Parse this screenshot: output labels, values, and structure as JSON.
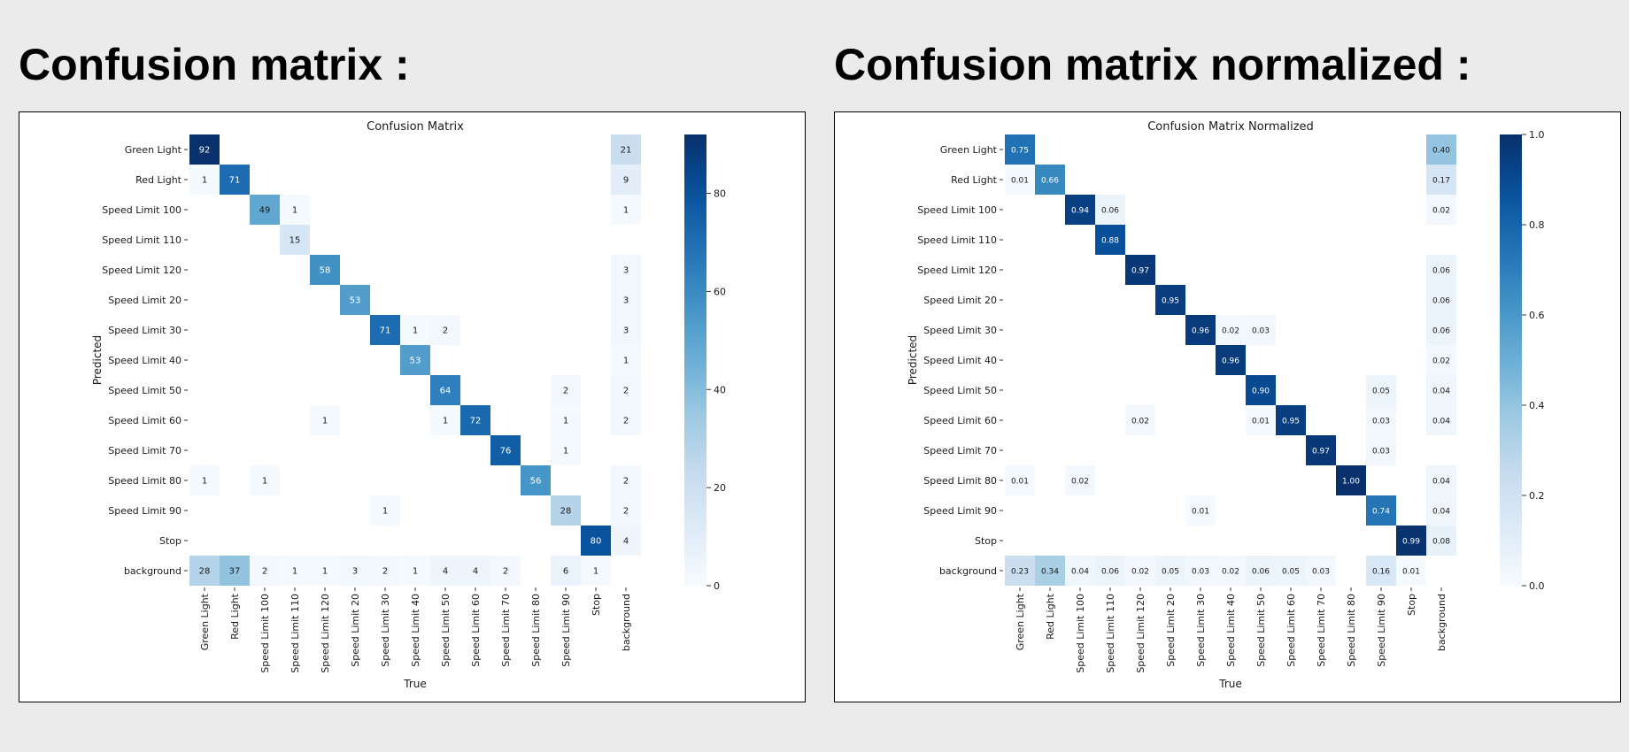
{
  "panels": [
    {
      "heading": "Confusion matrix :"
    },
    {
      "heading": "Confusion matrix normalized :"
    }
  ],
  "chart_data": [
    {
      "type": "heatmap",
      "title": "Confusion Matrix",
      "xlabel": "True",
      "ylabel": "Predicted",
      "colormap": "Blues",
      "color_range": [
        0,
        92
      ],
      "colorbar_ticks": [
        0,
        20,
        40,
        60,
        80
      ],
      "value_format": "int",
      "x_categories": [
        "Green Light",
        "Red Light",
        "Speed Limit 100",
        "Speed Limit 110",
        "Speed Limit 120",
        "Speed Limit 20",
        "Speed Limit 30",
        "Speed Limit 40",
        "Speed Limit 50",
        "Speed Limit 60",
        "Speed Limit 70",
        "Speed Limit 80",
        "Speed Limit 90",
        "Stop",
        "background"
      ],
      "y_categories": [
        "Green Light",
        "Red Light",
        "Speed Limit 100",
        "Speed Limit 110",
        "Speed Limit 120",
        "Speed Limit 20",
        "Speed Limit 30",
        "Speed Limit 40",
        "Speed Limit 50",
        "Speed Limit 60",
        "Speed Limit 70",
        "Speed Limit 80",
        "Speed Limit 90",
        "Stop",
        "background"
      ],
      "values": [
        [
          92,
          null,
          null,
          null,
          null,
          null,
          null,
          null,
          null,
          null,
          null,
          null,
          null,
          null,
          21
        ],
        [
          1,
          71,
          null,
          null,
          null,
          null,
          null,
          null,
          null,
          null,
          null,
          null,
          null,
          null,
          9
        ],
        [
          null,
          null,
          49,
          1,
          null,
          null,
          null,
          null,
          null,
          null,
          null,
          null,
          null,
          null,
          1
        ],
        [
          null,
          null,
          null,
          15,
          null,
          null,
          null,
          null,
          null,
          null,
          null,
          null,
          null,
          null,
          null
        ],
        [
          null,
          null,
          null,
          null,
          58,
          null,
          null,
          null,
          null,
          null,
          null,
          null,
          null,
          null,
          3
        ],
        [
          null,
          null,
          null,
          null,
          null,
          53,
          null,
          null,
          null,
          null,
          null,
          null,
          null,
          null,
          3
        ],
        [
          null,
          null,
          null,
          null,
          null,
          null,
          71,
          1,
          2,
          null,
          null,
          null,
          null,
          null,
          3
        ],
        [
          null,
          null,
          null,
          null,
          null,
          null,
          null,
          53,
          null,
          null,
          null,
          null,
          null,
          null,
          1
        ],
        [
          null,
          null,
          null,
          null,
          null,
          null,
          null,
          null,
          64,
          null,
          null,
          null,
          2,
          null,
          2
        ],
        [
          null,
          null,
          null,
          null,
          1,
          null,
          null,
          null,
          1,
          72,
          null,
          null,
          1,
          null,
          2
        ],
        [
          null,
          null,
          null,
          null,
          null,
          null,
          null,
          null,
          null,
          null,
          76,
          null,
          1,
          null,
          null
        ],
        [
          1,
          null,
          1,
          null,
          null,
          null,
          null,
          null,
          null,
          null,
          null,
          56,
          null,
          null,
          2
        ],
        [
          null,
          null,
          null,
          null,
          null,
          null,
          1,
          null,
          null,
          null,
          null,
          null,
          28,
          null,
          2
        ],
        [
          null,
          null,
          null,
          null,
          null,
          null,
          null,
          null,
          null,
          null,
          null,
          null,
          null,
          80,
          4
        ],
        [
          28,
          37,
          2,
          1,
          1,
          3,
          2,
          1,
          4,
          4,
          2,
          null,
          6,
          1,
          null
        ]
      ]
    },
    {
      "type": "heatmap",
      "title": "Confusion Matrix Normalized",
      "xlabel": "True",
      "ylabel": "Predicted",
      "colormap": "Blues",
      "color_range": [
        0,
        1
      ],
      "colorbar_ticks": [
        0,
        0.2,
        0.4,
        0.6,
        0.8,
        1.0
      ],
      "value_format": "2dp",
      "x_categories": [
        "Green Light",
        "Red Light",
        "Speed Limit 100",
        "Speed Limit 110",
        "Speed Limit 120",
        "Speed Limit 20",
        "Speed Limit 30",
        "Speed Limit 40",
        "Speed Limit 50",
        "Speed Limit 60",
        "Speed Limit 70",
        "Speed Limit 80",
        "Speed Limit 90",
        "Stop",
        "background"
      ],
      "y_categories": [
        "Green Light",
        "Red Light",
        "Speed Limit 100",
        "Speed Limit 110",
        "Speed Limit 120",
        "Speed Limit 20",
        "Speed Limit 30",
        "Speed Limit 40",
        "Speed Limit 50",
        "Speed Limit 60",
        "Speed Limit 70",
        "Speed Limit 80",
        "Speed Limit 90",
        "Stop",
        "background"
      ],
      "values": [
        [
          0.75,
          null,
          null,
          null,
          null,
          null,
          null,
          null,
          null,
          null,
          null,
          null,
          null,
          null,
          0.4
        ],
        [
          0.01,
          0.66,
          null,
          null,
          null,
          null,
          null,
          null,
          null,
          null,
          null,
          null,
          null,
          null,
          0.17
        ],
        [
          null,
          null,
          0.94,
          0.06,
          null,
          null,
          null,
          null,
          null,
          null,
          null,
          null,
          null,
          null,
          0.02
        ],
        [
          null,
          null,
          null,
          0.88,
          null,
          null,
          null,
          null,
          null,
          null,
          null,
          null,
          null,
          null,
          null
        ],
        [
          null,
          null,
          null,
          null,
          0.97,
          null,
          null,
          null,
          null,
          null,
          null,
          null,
          null,
          null,
          0.06
        ],
        [
          null,
          null,
          null,
          null,
          null,
          0.95,
          null,
          null,
          null,
          null,
          null,
          null,
          null,
          null,
          0.06
        ],
        [
          null,
          null,
          null,
          null,
          null,
          null,
          0.96,
          0.02,
          0.03,
          null,
          null,
          null,
          null,
          null,
          0.06
        ],
        [
          null,
          null,
          null,
          null,
          null,
          null,
          null,
          0.96,
          null,
          null,
          null,
          null,
          null,
          null,
          0.02
        ],
        [
          null,
          null,
          null,
          null,
          null,
          null,
          null,
          null,
          0.9,
          null,
          null,
          null,
          0.05,
          null,
          0.04
        ],
        [
          null,
          null,
          null,
          null,
          0.02,
          null,
          null,
          null,
          0.01,
          0.95,
          null,
          null,
          0.03,
          null,
          0.04
        ],
        [
          null,
          null,
          null,
          null,
          null,
          null,
          null,
          null,
          null,
          null,
          0.97,
          null,
          0.03,
          null,
          null
        ],
        [
          0.01,
          null,
          0.02,
          null,
          null,
          null,
          null,
          null,
          null,
          null,
          null,
          1.0,
          null,
          null,
          0.04
        ],
        [
          null,
          null,
          null,
          null,
          null,
          null,
          0.01,
          null,
          null,
          null,
          null,
          null,
          0.74,
          null,
          0.04
        ],
        [
          null,
          null,
          null,
          null,
          null,
          null,
          null,
          null,
          null,
          null,
          null,
          null,
          null,
          0.99,
          0.08
        ],
        [
          0.23,
          0.34,
          0.04,
          0.06,
          0.02,
          0.05,
          0.03,
          0.02,
          0.06,
          0.05,
          0.03,
          null,
          0.16,
          0.01,
          null
        ]
      ]
    }
  ]
}
